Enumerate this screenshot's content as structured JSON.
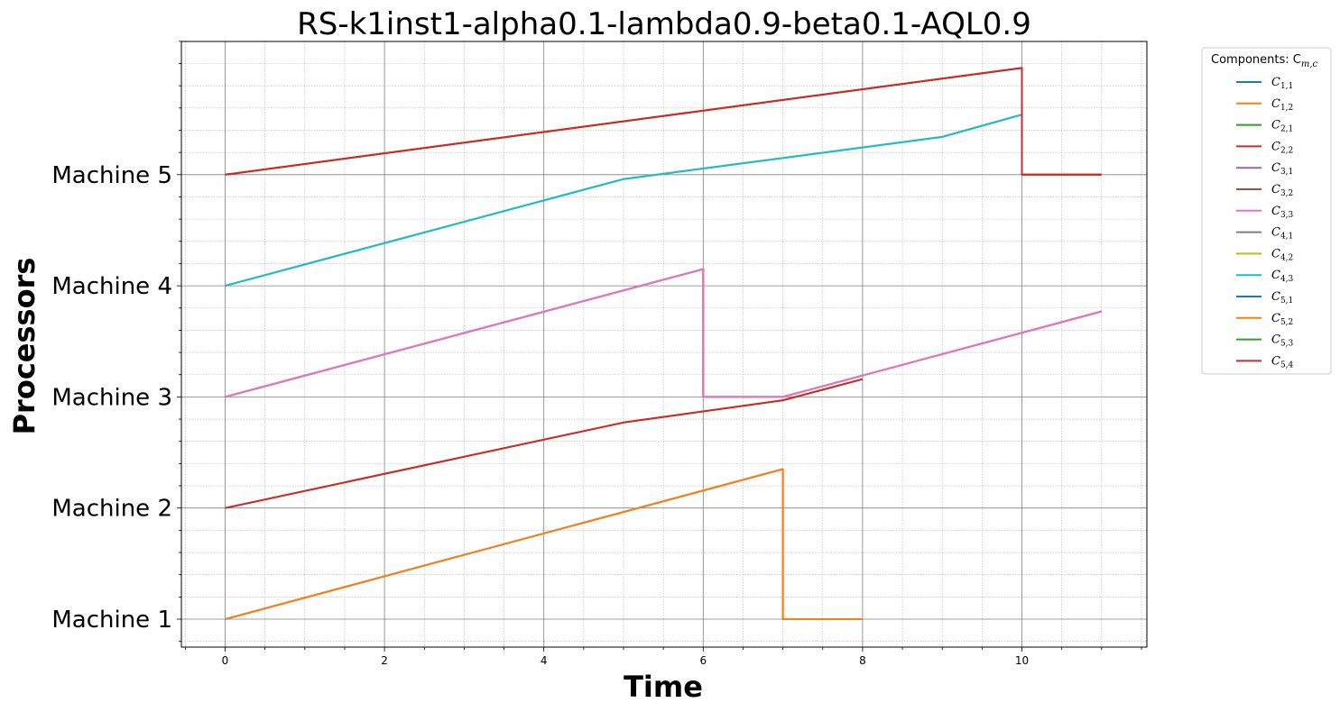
{
  "chart_data": {
    "type": "line",
    "title": "RS-k1inst1-alpha0.1-lambda0.9-beta0.1-AQL0.9",
    "xlabel": "Time",
    "ylabel": "Processors",
    "xlim": [
      -0.53,
      11.53
    ],
    "ylim": [
      0.77,
      6.2
    ],
    "xticks": [
      0,
      2,
      4,
      6,
      8,
      10
    ],
    "xticks_minor_step": 0.5,
    "yticks": [
      1,
      2,
      3,
      4,
      5
    ],
    "ytick_labels": [
      "Machine 1",
      "Machine 2",
      "Machine 3",
      "Machine 4",
      "Machine 5"
    ],
    "yticks_minor_step": 0.2,
    "grid": true,
    "legend": {
      "title": "Components: C",
      "title_sub": "m,c",
      "placement": "outside-top-right"
    },
    "series": [
      {
        "name": "C",
        "sub": "1,1",
        "color": "#1f77b4",
        "points": [
          [
            0,
            1
          ],
          [
            7,
            2.35
          ],
          [
            7,
            1
          ],
          [
            8,
            1
          ]
        ]
      },
      {
        "name": "C",
        "sub": "1,2",
        "color": "#ff7f0e",
        "points": [
          [
            0,
            1
          ],
          [
            7,
            2.35
          ],
          [
            7,
            1
          ],
          [
            8,
            1
          ]
        ]
      },
      {
        "name": "C",
        "sub": "2,1",
        "color": "#2ca02c",
        "points": [
          [
            0,
            2
          ],
          [
            5,
            2.77
          ],
          [
            7,
            2.97
          ],
          [
            8,
            3.16
          ]
        ]
      },
      {
        "name": "C",
        "sub": "2,2",
        "color": "#d62728",
        "points": [
          [
            0,
            2
          ],
          [
            5,
            2.77
          ],
          [
            7,
            2.97
          ],
          [
            8,
            3.16
          ]
        ]
      },
      {
        "name": "C",
        "sub": "3,1",
        "color": "#9467bd",
        "points": [
          [
            0,
            3
          ],
          [
            6,
            4.15
          ],
          [
            6,
            3
          ],
          [
            7,
            3
          ],
          [
            11,
            3.77
          ]
        ]
      },
      {
        "name": "C",
        "sub": "3,2",
        "color": "#8c564b",
        "points": [
          [
            0,
            3
          ],
          [
            6,
            4.15
          ],
          [
            6,
            3
          ],
          [
            7,
            3
          ],
          [
            11,
            3.77
          ]
        ]
      },
      {
        "name": "C",
        "sub": "3,3",
        "color": "#e377c2",
        "points": [
          [
            0,
            3
          ],
          [
            6,
            4.15
          ],
          [
            6,
            3
          ],
          [
            7,
            3
          ],
          [
            11,
            3.77
          ]
        ]
      },
      {
        "name": "C",
        "sub": "4,1",
        "color": "#7f7f7f",
        "points": [
          [
            0,
            4
          ],
          [
            5,
            4.96
          ],
          [
            9,
            5.34
          ],
          [
            10,
            5.54
          ]
        ]
      },
      {
        "name": "C",
        "sub": "4,2",
        "color": "#bcbd22",
        "points": [
          [
            0,
            4
          ],
          [
            5,
            4.96
          ],
          [
            9,
            5.34
          ],
          [
            10,
            5.54
          ]
        ]
      },
      {
        "name": "C",
        "sub": "4,3",
        "color": "#17becf",
        "points": [
          [
            0,
            4
          ],
          [
            5,
            4.96
          ],
          [
            9,
            5.34
          ],
          [
            10,
            5.54
          ]
        ]
      },
      {
        "name": "C",
        "sub": "5,1",
        "color": "#1f77b4",
        "points": [
          [
            0,
            5
          ],
          [
            10,
            5.96
          ],
          [
            10,
            5
          ],
          [
            11,
            5
          ]
        ]
      },
      {
        "name": "C",
        "sub": "5,2",
        "color": "#ff7f0e",
        "points": [
          [
            0,
            5
          ],
          [
            10,
            5.96
          ],
          [
            10,
            5
          ],
          [
            11,
            5
          ]
        ]
      },
      {
        "name": "C",
        "sub": "5,3",
        "color": "#2ca02c",
        "points": [
          [
            0,
            5
          ],
          [
            10,
            5.96
          ],
          [
            10,
            5
          ],
          [
            11,
            5
          ]
        ]
      },
      {
        "name": "C",
        "sub": "5,4",
        "color": "#d62728",
        "points": [
          [
            0,
            5
          ],
          [
            10,
            5.96
          ],
          [
            10,
            5
          ],
          [
            11,
            5
          ]
        ]
      }
    ]
  }
}
